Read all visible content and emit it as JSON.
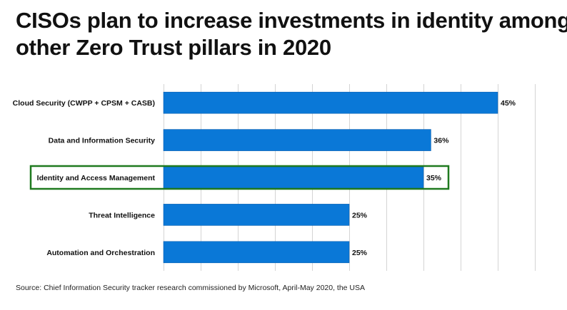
{
  "title_lines": [
    "CISOs plan to increase investments in identity among",
    "other Zero Trust pillars in 2020"
  ],
  "source": "Source: Chief Information Security tracker research commissioned by Microsoft, April-May 2020, the USA",
  "chart_data": {
    "type": "bar",
    "orientation": "horizontal",
    "categories": [
      "Cloud Security (CWPP + CPSM + CASB)",
      "Data and Information Security",
      "Identity and Access Management",
      "Threat Intelligence",
      "Automation and Orchestration"
    ],
    "values": [
      45,
      36,
      35,
      25,
      25
    ],
    "value_labels": [
      "45%",
      "36%",
      "35%",
      "25%",
      "25%"
    ],
    "xlim": [
      0,
      50
    ],
    "grid": true,
    "highlighted_category": "Identity and Access Management",
    "colors": {
      "bar": "#0a78d7",
      "bar_border": "#0a5fb0",
      "highlight": "#1f7a1f",
      "grid": "#d4d4d4"
    }
  }
}
